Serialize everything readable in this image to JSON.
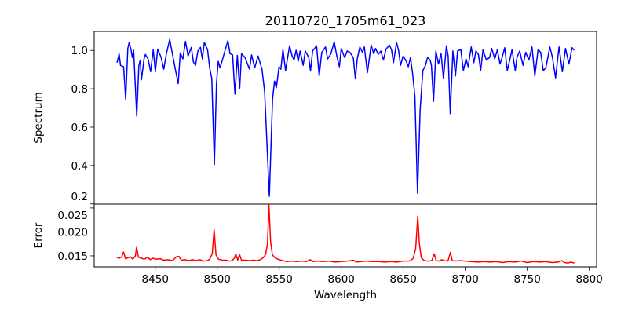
{
  "chart_data": [
    {
      "type": "line",
      "title": "20110720_1705m61_023",
      "xlabel": "",
      "ylabel": "Spectrum",
      "xlim": [
        8400.8,
        8805.9
      ],
      "ylim": [
        0.199,
        1.099
      ],
      "yticks": [
        0.2,
        0.4,
        0.6,
        0.8,
        1.0
      ],
      "ytick_labels": [
        "0.2",
        "0.4",
        "0.6",
        "0.8",
        "1.0"
      ],
      "grid": false,
      "series": [
        {
          "name": "Spectrum",
          "color": "#0000ff",
          "x": [
            8419.2,
            8420.9,
            8422,
            8424.5,
            8426.2,
            8427.9,
            8429,
            8430.5,
            8431.5,
            8432.6,
            8435.1,
            8436.8,
            8437.9,
            8438.9,
            8441,
            8442.1,
            8444.2,
            8446.3,
            8448.4,
            8450.1,
            8452,
            8454.8,
            8456.9,
            8459,
            8461.7,
            8463.2,
            8466,
            8468.5,
            8470.2,
            8472.3,
            8474.4,
            8476.5,
            8479.1,
            8480.8,
            8482.5,
            8484.4,
            8486.5,
            8488,
            8489.6,
            8492.2,
            8493.9,
            8495.6,
            8497.7,
            8499.4,
            8500.8,
            8502.3,
            8504.4,
            8506.5,
            8508.6,
            8510.3,
            8512.4,
            8514.3,
            8516.2,
            8518.1,
            8519.6,
            8522.4,
            8526,
            8527.7,
            8530.2,
            8532.9,
            8536.1,
            8538.2,
            8542,
            8544.6,
            8546.2,
            8547.7,
            8549.8,
            8551.3,
            8553,
            8555.1,
            8558.3,
            8560.4,
            8561.9,
            8563.6,
            8565.3,
            8566.8,
            8569.3,
            8571,
            8573.8,
            8575.2,
            8576.9,
            8580.1,
            8582.2,
            8584.3,
            8587.3,
            8589,
            8591.7,
            8594.3,
            8596.4,
            8598.5,
            8600,
            8602.7,
            8604.8,
            8607,
            8609.7,
            8611.4,
            8612.9,
            8615,
            8617.1,
            8618.6,
            8621.1,
            8624.1,
            8626.2,
            8627.7,
            8629.8,
            8631.9,
            8634,
            8636.1,
            8638.9,
            8640.6,
            8642.1,
            8644.6,
            8646.3,
            8647.8,
            8649.9,
            8652.4,
            8654.1,
            8655.8,
            8657.5,
            8659.4,
            8661.5,
            8663.6,
            8665.8,
            8667.9,
            8669.6,
            8671.7,
            8672.7,
            8674.4,
            8676.3,
            8678.4,
            8680.5,
            8682.4,
            8684.8,
            8686.2,
            8687.9,
            8690,
            8692.1,
            8693.8,
            8696.4,
            8698.5,
            8700.6,
            8702.3,
            8704.8,
            8706.9,
            8708.6,
            8710.7,
            8712.4,
            8714.3,
            8717,
            8719.6,
            8721.3,
            8723.8,
            8725.9,
            8728,
            8729.7,
            8731.8,
            8733.9,
            8735.4,
            8737.7,
            8740.3,
            8741.7,
            8743.9,
            8746.6,
            8748.7,
            8751.3,
            8753.8,
            8756.1,
            8758.7,
            8760.8,
            8762.9,
            8765,
            8768.2,
            8770.3,
            8772.8,
            8775.6,
            8778.3,
            8780.8,
            8783.6,
            8786.1,
            8787.8
          ],
          "y": [
            0.936,
            0.983,
            0.922,
            0.915,
            0.745,
            1.01,
            1.042,
            1.004,
            0.963,
            1.001,
            0.657,
            0.922,
            0.949,
            0.847,
            0.956,
            0.979,
            0.956,
            0.889,
            1.004,
            0.889,
            1.007,
            0.963,
            0.902,
            0.983,
            1.058,
            1.004,
            0.909,
            0.827,
            0.987,
            0.956,
            1.047,
            0.971,
            1.016,
            0.939,
            0.922,
            0.997,
            1.016,
            0.956,
            1.042,
            1.004,
            0.909,
            0.854,
            0.405,
            0.827,
            0.943,
            0.909,
            0.956,
            1.004,
            1.051,
            0.983,
            0.977,
            0.772,
            0.974,
            0.802,
            0.983,
            0.963,
            0.902,
            0.977,
            0.909,
            0.971,
            0.902,
            0.786,
            0.24,
            0.745,
            0.84,
            0.806,
            0.915,
            0.902,
            1.004,
            0.895,
            1.024,
            0.971,
            0.95,
            1.001,
            0.943,
            0.997,
            0.922,
            0.997,
            0.963,
            0.893,
            0.997,
            1.024,
            0.867,
            0.99,
            1.018,
            0.956,
            0.983,
            1.045,
            0.971,
            0.915,
            1.01,
            0.963,
            0.997,
            0.99,
            0.963,
            0.852,
            0.956,
            1.018,
            0.99,
            1.018,
            0.884,
            1.028,
            0.983,
            1.01,
            0.979,
            0.997,
            0.95,
            1.007,
            1.028,
            1.001,
            0.936,
            1.042,
            0.997,
            0.922,
            0.971,
            0.943,
            0.915,
            0.963,
            0.882,
            0.759,
            0.256,
            0.691,
            0.895,
            0.922,
            0.963,
            0.95,
            0.922,
            0.734,
            0.997,
            0.929,
            0.983,
            0.854,
            1.024,
            0.971,
            0.67,
            0.997,
            0.867,
            0.997,
            1.004,
            0.895,
            0.956,
            0.915,
            1.018,
            0.936,
            0.997,
            0.977,
            0.895,
            1.004,
            0.95,
            0.963,
            1.01,
            0.956,
            1.004,
            0.929,
            0.963,
            1.014,
            0.895,
            0.936,
            1.004,
            0.895,
            0.963,
            0.997,
            0.922,
            0.99,
            0.95,
            1.018,
            0.867,
            1.004,
            0.99,
            0.895,
            0.909,
            1.018,
            0.963,
            0.857,
            1.018,
            0.889,
            1.01,
            0.929,
            1.014,
            1.001
          ]
        }
      ]
    },
    {
      "type": "line",
      "title": "",
      "xlabel": "Wavelength",
      "ylabel": "Error",
      "xlim": [
        8400.8,
        8805.9
      ],
      "ylim": [
        0.0127,
        0.0258
      ],
      "xticks": [
        8450,
        8500,
        8550,
        8600,
        8650,
        8700,
        8750,
        8800
      ],
      "xtick_labels": [
        "8450",
        "8500",
        "8550",
        "8600",
        "8650",
        "8700",
        "8750",
        "8800"
      ],
      "yticks": [
        0.015,
        0.02,
        0.025
      ],
      "ytick_labels": [
        "0.015",
        "0.020",
        "0.025"
      ],
      "grid": false,
      "series": [
        {
          "name": "Error",
          "color": "#ff0000",
          "x": [
            8419,
            8421,
            8423,
            8424.5,
            8426,
            8428,
            8430,
            8432,
            8434,
            8435,
            8436.5,
            8439,
            8441,
            8444,
            8446,
            8448,
            8451,
            8454,
            8457,
            8460,
            8464,
            8467,
            8469,
            8471,
            8474,
            8477,
            8480,
            8483,
            8486,
            8489,
            8492,
            8494,
            8496,
            8497.5,
            8499,
            8501,
            8504,
            8507,
            8510,
            8512,
            8514,
            8515,
            8516.5,
            8518,
            8519.5,
            8523,
            8526,
            8529,
            8532,
            8535,
            8537,
            8539,
            8540.5,
            8541.7,
            8543,
            8544.5,
            8547,
            8550,
            8553,
            8556,
            8560,
            8564,
            8568,
            8572,
            8575,
            8577,
            8581,
            8585,
            8590,
            8595,
            8600,
            8605,
            8610,
            8612,
            8616,
            8620,
            8625,
            8630,
            8635,
            8640,
            8645,
            8650,
            8654,
            8656,
            8658,
            8660,
            8661.7,
            8663,
            8664.5,
            8667,
            8670,
            8673,
            8675,
            8676.5,
            8679,
            8681,
            8683,
            8686,
            8688,
            8689.5,
            8692,
            8695,
            8700,
            8705,
            8710,
            8715,
            8720,
            8725,
            8730,
            8735,
            8740,
            8745,
            8750,
            8755,
            8760,
            8765,
            8770,
            8775,
            8778,
            8780,
            8783,
            8785,
            8788
          ],
          "y": [
            0.0147,
            0.0145,
            0.0148,
            0.0158,
            0.0144,
            0.0146,
            0.0148,
            0.0143,
            0.015,
            0.0168,
            0.0147,
            0.0145,
            0.0143,
            0.0147,
            0.0142,
            0.0145,
            0.0143,
            0.0144,
            0.0141,
            0.0142,
            0.014,
            0.0148,
            0.0149,
            0.0141,
            0.0142,
            0.014,
            0.0142,
            0.014,
            0.0142,
            0.0139,
            0.014,
            0.0143,
            0.0155,
            0.0205,
            0.0152,
            0.0143,
            0.0141,
            0.0141,
            0.0139,
            0.014,
            0.0146,
            0.0154,
            0.0141,
            0.0153,
            0.0141,
            0.0141,
            0.014,
            0.0141,
            0.014,
            0.0142,
            0.0146,
            0.0153,
            0.0175,
            0.0256,
            0.018,
            0.0152,
            0.0145,
            0.0142,
            0.014,
            0.0138,
            0.0139,
            0.0138,
            0.0139,
            0.0138,
            0.0142,
            0.0138,
            0.0139,
            0.0138,
            0.0139,
            0.0137,
            0.0138,
            0.0139,
            0.0141,
            0.0137,
            0.0138,
            0.0139,
            0.0138,
            0.0138,
            0.0137,
            0.0138,
            0.0137,
            0.0139,
            0.0139,
            0.014,
            0.0145,
            0.0165,
            0.0233,
            0.0175,
            0.0146,
            0.014,
            0.0139,
            0.014,
            0.0154,
            0.014,
            0.0139,
            0.0142,
            0.014,
            0.0139,
            0.0157,
            0.014,
            0.0139,
            0.014,
            0.0139,
            0.0138,
            0.0137,
            0.0138,
            0.0137,
            0.0138,
            0.0136,
            0.0138,
            0.0137,
            0.0139,
            0.0136,
            0.0138,
            0.0137,
            0.0138,
            0.0136,
            0.0137,
            0.014,
            0.0136,
            0.0135,
            0.0137,
            0.0135
          ]
        }
      ]
    }
  ]
}
